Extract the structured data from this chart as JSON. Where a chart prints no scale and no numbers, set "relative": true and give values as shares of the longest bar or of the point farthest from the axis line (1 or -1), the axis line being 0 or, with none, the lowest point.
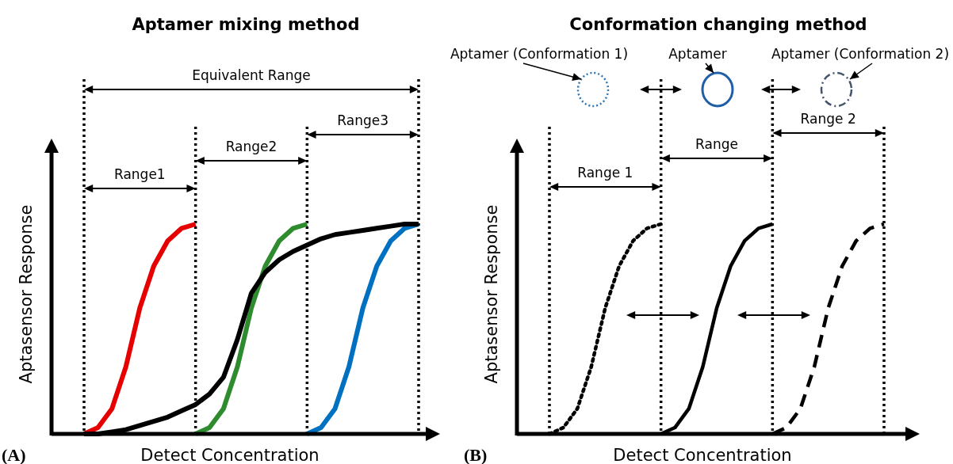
{
  "chart_data": [
    {
      "type": "line",
      "title": "Aptamer mixing method",
      "xlabel": "Detect Concentration",
      "ylabel": "Aptasensor Response",
      "relative": true,
      "grid": "x",
      "categories": [
        null,
        null,
        null,
        null,
        null,
        null,
        null,
        null,
        null,
        null,
        null,
        null,
        null,
        null,
        null,
        null,
        null,
        null,
        null,
        null,
        null,
        null,
        null,
        null,
        null
      ],
      "series": [
        {
          "color": "#e60000",
          "line_style": "solid",
          "values": [
            0,
            0.03,
            0.12,
            0.32,
            0.6,
            0.8,
            0.92,
            0.98,
            1,
            null,
            null,
            null,
            null,
            null,
            null,
            null,
            null,
            null,
            null,
            null,
            null,
            null,
            null,
            null,
            null
          ]
        },
        {
          "color": "#2e8b2e",
          "line_style": "solid",
          "values": [
            null,
            null,
            null,
            null,
            null,
            null,
            null,
            null,
            0,
            0.03,
            0.12,
            0.32,
            0.6,
            0.8,
            0.92,
            0.98,
            1,
            null,
            null,
            null,
            null,
            null,
            null,
            null,
            null
          ]
        },
        {
          "color": "#0070c0",
          "line_style": "solid",
          "values": [
            null,
            null,
            null,
            null,
            null,
            null,
            null,
            null,
            null,
            null,
            null,
            null,
            null,
            null,
            null,
            null,
            0,
            0.03,
            0.12,
            0.32,
            0.6,
            0.8,
            0.92,
            0.98,
            1
          ]
        },
        {
          "color": "#000000",
          "line_style": "solid",
          "values": [
            0,
            0,
            0.01,
            0.02,
            0.04,
            0.06,
            0.08,
            0.11,
            0.14,
            0.19,
            0.27,
            0.45,
            0.67,
            0.77,
            0.83,
            0.87,
            0.9,
            0.93,
            0.95,
            0.96,
            0.97,
            0.98,
            0.99,
            1,
            1
          ]
        }
      ],
      "annotations": [
        "(A)",
        "Equivalent Range",
        "Range1",
        "Range2",
        "Range3"
      ]
    },
    {
      "type": "line",
      "title": "Conformation changing method",
      "xlabel": "Detect Concentration",
      "ylabel": "Aptasensor Response",
      "relative": true,
      "grid": "x",
      "categories": [
        null,
        null,
        null,
        null,
        null,
        null,
        null,
        null,
        null,
        null,
        null,
        null,
        null,
        null,
        null,
        null,
        null,
        null,
        null,
        null,
        null,
        null,
        null,
        null,
        null
      ],
      "series": [
        {
          "color": "#000000",
          "line_style": "dotted",
          "values": [
            0,
            0.03,
            0.12,
            0.32,
            0.6,
            0.8,
            0.92,
            0.98,
            1,
            null,
            null,
            null,
            null,
            null,
            null,
            null,
            null,
            null,
            null,
            null,
            null,
            null,
            null,
            null,
            null
          ]
        },
        {
          "color": "#000000",
          "line_style": "solid",
          "values": [
            null,
            null,
            null,
            null,
            null,
            null,
            null,
            null,
            0,
            0.03,
            0.12,
            0.32,
            0.6,
            0.8,
            0.92,
            0.98,
            1,
            null,
            null,
            null,
            null,
            null,
            null,
            null,
            null
          ]
        },
        {
          "color": "#000000",
          "line_style": "dashed",
          "values": [
            null,
            null,
            null,
            null,
            null,
            null,
            null,
            null,
            null,
            null,
            null,
            null,
            null,
            null,
            null,
            null,
            0,
            0.03,
            0.12,
            0.32,
            0.6,
            0.8,
            0.92,
            0.98,
            1
          ]
        }
      ],
      "annotations": [
        "(B)",
        "Aptamer (Conformation 1)",
        "Aptamer",
        "Aptamer (Conformation 2)",
        "Range 1",
        "Range",
        "Range 2"
      ]
    }
  ]
}
